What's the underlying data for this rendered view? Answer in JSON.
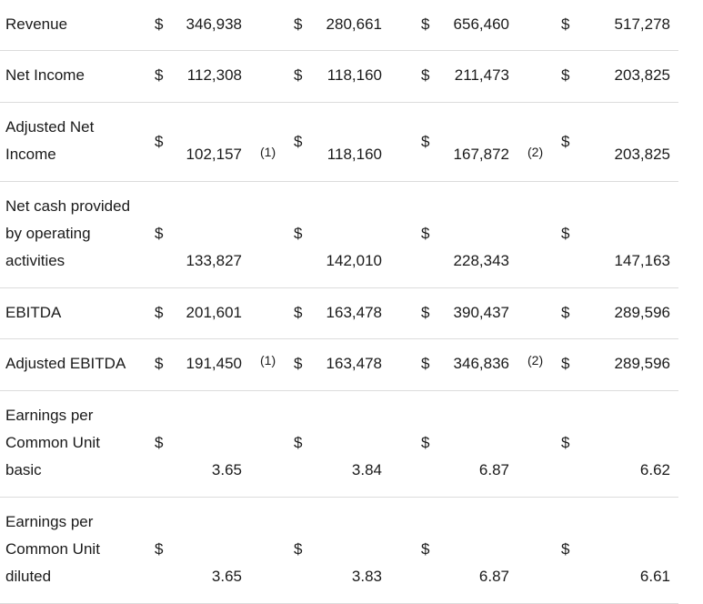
{
  "currency_symbol": "$",
  "rows": [
    {
      "label": "Revenue",
      "values": [
        "346,938",
        "280,661",
        "656,460",
        "517,278"
      ],
      "notes": [
        "",
        "",
        "",
        ""
      ]
    },
    {
      "label": "Net Income",
      "values": [
        "112,308",
        "118,160",
        "211,473",
        "203,825"
      ],
      "notes": [
        "",
        "",
        "",
        ""
      ]
    },
    {
      "label": "Adjusted Net Income",
      "values": [
        "102,157",
        "118,160",
        "167,872",
        "203,825"
      ],
      "notes": [
        "(1)",
        "",
        "(2)",
        ""
      ]
    },
    {
      "label": "Net cash provided by operating activities",
      "values": [
        "133,827",
        "142,010",
        "228,343",
        "147,163"
      ],
      "notes": [
        "",
        "",
        "",
        ""
      ]
    },
    {
      "label": "EBITDA",
      "values": [
        "201,601",
        "163,478",
        "390,437",
        "289,596"
      ],
      "notes": [
        "",
        "",
        "",
        ""
      ]
    },
    {
      "label": "Adjusted EBITDA",
      "values": [
        "191,450",
        "163,478",
        "346,836",
        "289,596"
      ],
      "notes": [
        "(1)",
        "",
        "(2)",
        ""
      ]
    },
    {
      "label": "Earnings per Common Unit basic",
      "values": [
        "3.65",
        "3.84",
        "6.87",
        "6.62"
      ],
      "notes": [
        "",
        "",
        "",
        ""
      ]
    },
    {
      "label": "Earnings per Common Unit diluted",
      "values": [
        "3.65",
        "3.83",
        "6.87",
        "6.61"
      ],
      "notes": [
        "",
        "",
        "",
        ""
      ]
    }
  ]
}
